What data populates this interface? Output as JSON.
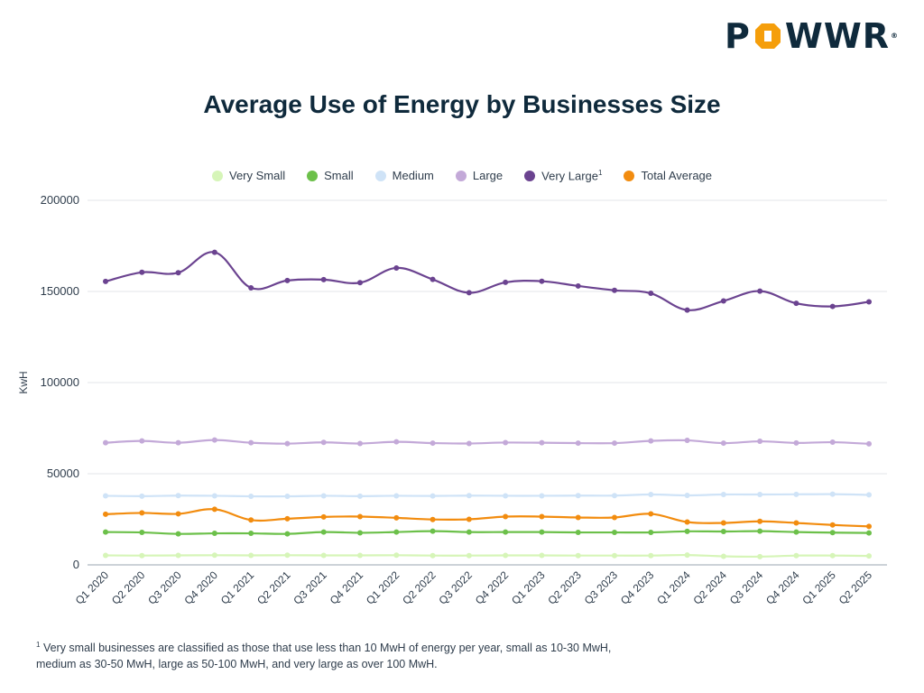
{
  "brand": {
    "name": "POWWR",
    "mark": "®",
    "accent": "#f59e0b",
    "ink": "#0f2a3c"
  },
  "footnote": {
    "marker": "1",
    "text": "Very small businesses are classified as those that use less than 10 MwH of energy per year, small as 10-30 MwH, medium as 30-50 MwH, large as 50-100 MwH, and very large as over 100 MwH."
  },
  "chart_data": {
    "type": "line",
    "title": "Average Use of Energy by Businesses Size",
    "xlabel": "",
    "ylabel": "KwH",
    "ylim": [
      0,
      200000
    ],
    "yticks": [
      0,
      50000,
      100000,
      150000,
      200000
    ],
    "grid": true,
    "legend_position": "top-center",
    "categories": [
      "Q1 2020",
      "Q2 2020",
      "Q3 2020",
      "Q4 2020",
      "Q1 2021",
      "Q2 2021",
      "Q3 2021",
      "Q4 2021",
      "Q1 2022",
      "Q2 2022",
      "Q3 2022",
      "Q4 2022",
      "Q1 2023",
      "Q2 2023",
      "Q3 2023",
      "Q4 2023",
      "Q1 2024",
      "Q2 2024",
      "Q3 2024",
      "Q4 2024",
      "Q1 2025",
      "Q2 2025"
    ],
    "series": [
      {
        "name": "Very Small",
        "color": "#d6f5b8",
        "values": [
          5200,
          5100,
          5200,
          5300,
          5200,
          5300,
          5200,
          5200,
          5300,
          5100,
          5100,
          5200,
          5200,
          5100,
          5100,
          5100,
          5400,
          4700,
          4500,
          5100,
          5100,
          4900
        ]
      },
      {
        "name": "Small",
        "color": "#6cc04a",
        "values": [
          18000,
          17800,
          17000,
          17300,
          17300,
          17000,
          18000,
          17600,
          18000,
          18500,
          18000,
          18000,
          18000,
          17800,
          17800,
          17800,
          18400,
          18300,
          18500,
          18000,
          17700,
          17500
        ]
      },
      {
        "name": "Medium",
        "color": "#cfe3f7",
        "values": [
          37900,
          37700,
          38000,
          37900,
          37600,
          37600,
          37900,
          37700,
          37900,
          37800,
          38000,
          37900,
          37900,
          38000,
          38000,
          38600,
          38100,
          38600,
          38600,
          38700,
          38800,
          38400
        ]
      },
      {
        "name": "Large",
        "color": "#c3a9d8",
        "values": [
          67000,
          68000,
          67000,
          68500,
          67000,
          66500,
          67200,
          66600,
          67500,
          66800,
          66600,
          67100,
          67000,
          66800,
          66800,
          68000,
          68300,
          66800,
          67800,
          66900,
          67300,
          66400
        ]
      },
      {
        "name": "Very Large",
        "marker": "1",
        "color": "#6b4390",
        "values": [
          155500,
          160500,
          160300,
          171500,
          152000,
          156000,
          156500,
          154800,
          162900,
          156600,
          149300,
          155000,
          155600,
          153000,
          150600,
          149000,
          139800,
          144800,
          150200,
          143500,
          141800,
          144300
        ]
      },
      {
        "name": "Total Average",
        "color": "#f28c0f",
        "values": [
          27800,
          28500,
          28000,
          30500,
          24600,
          25300,
          26300,
          26500,
          25800,
          24900,
          25000,
          26500,
          26500,
          26000,
          26000,
          28000,
          23500,
          23000,
          23900,
          23000,
          21900,
          21100
        ]
      }
    ]
  }
}
